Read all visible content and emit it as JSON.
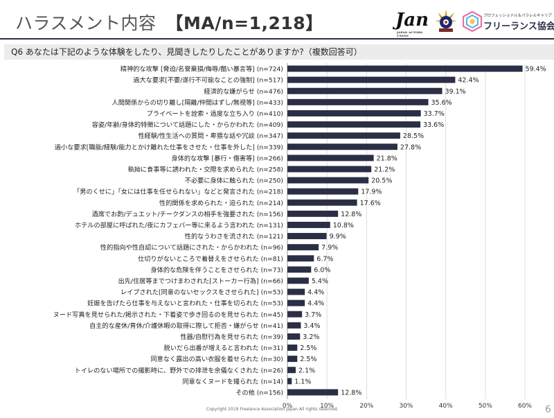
{
  "header": {
    "title": "ハラスメント内容",
    "subtitle": "【MA/n=1,218】",
    "question": "Q6 あなたは下記のような体験をしたり、見聞きしたりしたことがありますか?（複数回答可）"
  },
  "logos": {
    "jan_text": "Jan",
    "jan_caption": "JAPAN ACTORS UNION",
    "fla_small": "プロフェッショナル＆パラレルキャリア",
    "fla_name": "フリーランス協会"
  },
  "footer": {
    "copyright": "Copyright 2019 Freelance Association Japan  All rights reserved.",
    "page": "6"
  },
  "colors": {
    "bar": "#2a2f45",
    "rule": "#2a2f45",
    "question_bg": "#ececec"
  },
  "chart_data": {
    "type": "bar",
    "orientation": "horizontal",
    "categories": [
      "精神的な攻撃 [脅迫/名誉棄損/侮辱/酷い暴言等] (n=724)",
      "過大な要求[不要/遂行不可能なことの強制] (n=517)",
      "経済的な嫌がらせ (n=476)",
      "人間関係からの切り離し[隔離/仲間はずし/無視等] (n=433)",
      "プライベートを詮索・過度な立ち入り (n=410)",
      "容姿/年齢/身体的特徴について話題にした・からかわれた (n=409)",
      "性経験/性生活への質問・卑猥な話や冗談 (n=347)",
      "過小な要求[職能/経験/能力とかけ離れた仕事をさせた・仕事を外した] (n=339)",
      "身体的な攻撃 [暴行・傷害等] (n=266)",
      "執拗に食事等に誘われた・交際を求められた (n=258)",
      "不必要に身体に触られた (n=250)",
      "「男のくせに」「女には仕事を任せられない」などと発言された (n=218)",
      "性的関係を求められた・迫られた (n=214)",
      "酒席でお酌/デュエット/チークダンスの相手を強要された (n=156)",
      "ホテルの部屋に呼ばれた/夜にカフェバー等に来るよう言われた (n=131)",
      "性的なうわさを流された (n=121)",
      "性的指向や性自認について話題にされた・からかわれた (n=96)",
      "仕切りがないところで着替えをさせられた (n=81)",
      "身体的な危険を伴うことをさせられた (n=73)",
      "出先/住居等までつけまわされた[ストーカー行為] (n=66)",
      "レイプされた[同意のないセックスをさせられた] (n=53)",
      "妊娠を告げたら仕事を与えないと言われた・仕事を切られた (n=53)",
      "ヌード写真を見せられた/掲示された・下着姿で歩き回るのを見せられた (n=45)",
      "自主的な産休/育休/介護休暇の取得に際して拒否・嫌がらせ (n=41)",
      "性器/自慰行為を見せられた (n=39)",
      "脱いだら出番が増えると言われた (n=31)",
      "同意なく露出の高い衣服を着せられた (n=30)",
      "トイレのない場所での撮影時に、野外での排泄を余儀なくされた (n=26)",
      "同意なくヌードを撮られた (n=14)",
      "その他 (n=156)"
    ],
    "values": [
      59.4,
      42.4,
      39.1,
      35.6,
      33.7,
      33.6,
      28.5,
      27.8,
      21.8,
      21.2,
      20.5,
      17.9,
      17.6,
      12.8,
      10.8,
      9.9,
      7.9,
      6.7,
      6.0,
      5.4,
      4.4,
      4.4,
      3.7,
      3.4,
      3.2,
      2.5,
      2.5,
      2.1,
      1.1,
      12.8
    ],
    "value_labels": [
      "59.4%",
      "42.4%",
      "39.1%",
      "35.6%",
      "33.7%",
      "33.6%",
      "28.5%",
      "27.8%",
      "21.8%",
      "21.2%",
      "20.5%",
      "17.9%",
      "17.6%",
      "12.8%",
      "10.8%",
      "9.9%",
      "7.9%",
      "6.7%",
      "6.0%",
      "5.4%",
      "4.4%",
      "4.4%",
      "3.7%",
      "3.4%",
      "3.2%",
      "2.5%",
      "2.5%",
      "2.1%",
      "1.1%",
      "12.8%"
    ],
    "xlim": [
      0,
      60
    ],
    "xticks": [
      "0%",
      "10%",
      "20%",
      "30%",
      "40%",
      "50%",
      "60%"
    ],
    "grid": true,
    "unit": "%"
  }
}
